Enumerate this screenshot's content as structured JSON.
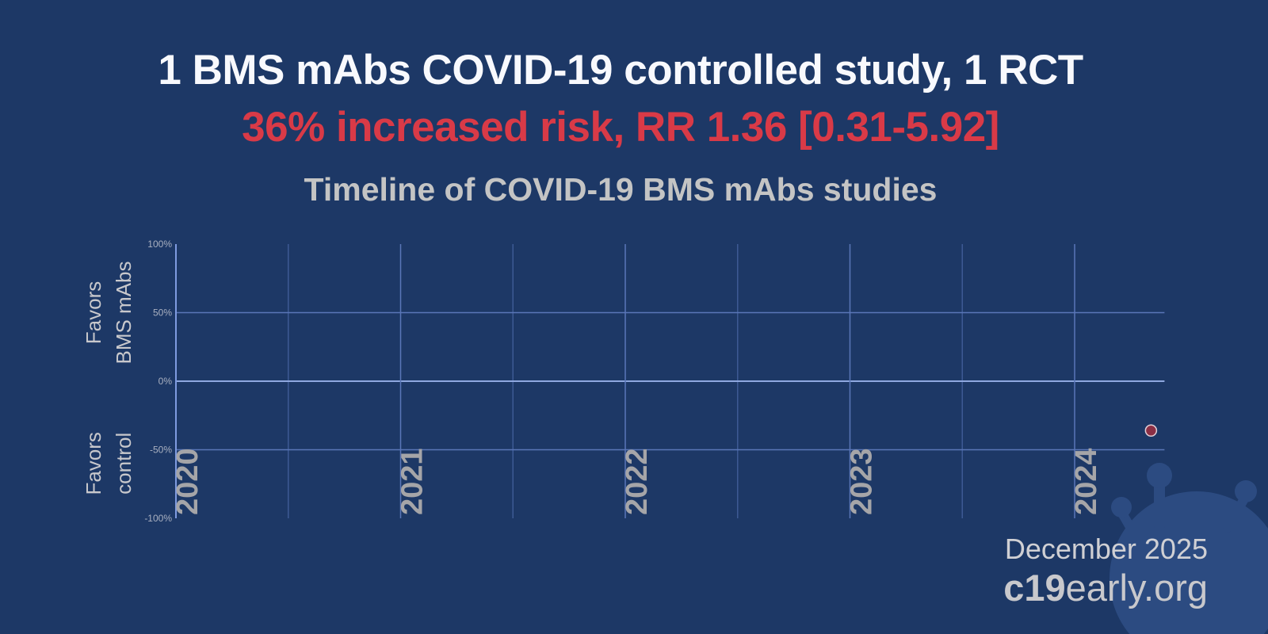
{
  "header": {
    "title": "1 BMS mAbs COVID-19 controlled study, 1 RCT",
    "subtitle": "36% increased risk, RR 1.36 [0.31-5.92]"
  },
  "footer": {
    "date": "December 2025",
    "brand_bold": "c19",
    "brand_rest": "early.org"
  },
  "colors": {
    "background": "#1d3866",
    "title": "#f8f9fd",
    "accent_red": "#d93a47",
    "point": "#8b2f45",
    "grid": "#5a76b8"
  },
  "chart_data": {
    "type": "scatter",
    "title": "Timeline of COVID-19 BMS mAbs studies",
    "ylabel_top": [
      "Favors",
      "BMS mAbs"
    ],
    "ylabel_bottom": [
      "Favors",
      "control"
    ],
    "ylim": [
      -100,
      100
    ],
    "yticks": [
      100,
      50,
      0,
      -50,
      -100
    ],
    "ytick_labels": [
      "100%",
      "50%",
      "0%",
      "-50%",
      "-100%"
    ],
    "xlim": [
      2020,
      2024.4
    ],
    "xticks": [
      2020,
      2021,
      2022,
      2023,
      2024
    ],
    "xtick_labels": [
      "2020",
      "2021",
      "2022",
      "2023",
      "2024"
    ],
    "grid": true,
    "points": [
      {
        "x": 2024.34,
        "y": -36
      }
    ]
  }
}
